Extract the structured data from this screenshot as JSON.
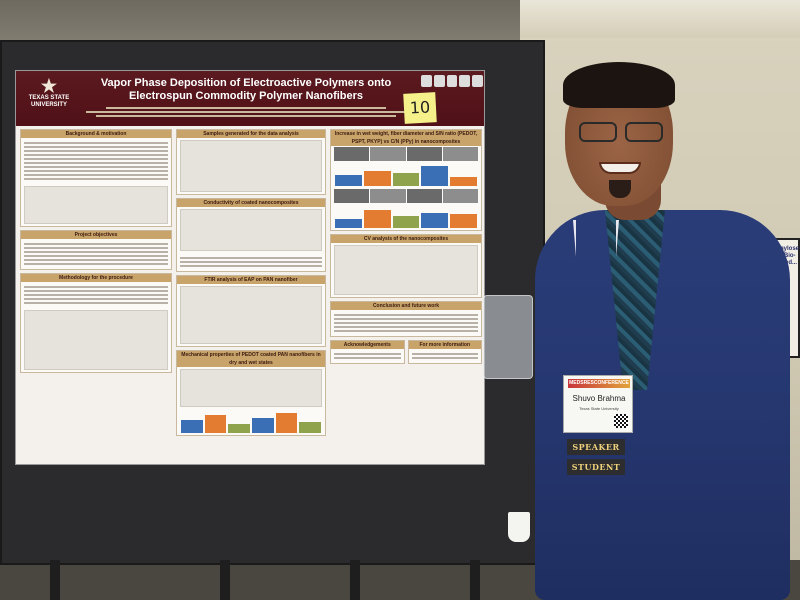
{
  "poster": {
    "logo_text": "TEXAS STATE UNIVERSITY",
    "title_line1": "Vapor Phase Deposition of Electroactive Polymers onto",
    "title_line2": "Electrospun Commodity Polymer Nanofibers",
    "booth_number": "10",
    "sections": {
      "background": "Background & motivation",
      "samples": "Samples generated for the data analysis",
      "increase": "Increase in wet weight, fiber diameter and S/N ratio (PEDOT, PSPT, PKYP) vs C/N (PPy) in nanocomposites",
      "conductivity": "Conductivity of coated nanocomposites",
      "ftir": "FTIR analysis of EAP on PAN nanofiber",
      "objectives": "Project objectives",
      "methodology": "Methodology for the procedure",
      "mechanical": "Mechanical properties of PEDOT coated PAN nanofibers in dry and wet states",
      "cv": "CV analysis of the nanocomposites",
      "conclusion": "Conclusion and future work",
      "acknowledgements": "Acknowledgements",
      "more_info": "For more information"
    }
  },
  "badge": {
    "conference": "MEDSRESCONFERENCE",
    "name": "Shuvo Brahma",
    "university": "Texas State University",
    "ribbon1": "SPEAKER",
    "ribbon2": "STUDENT"
  },
  "right_poster": {
    "text": "Amylose-P... Bio-Based..."
  }
}
